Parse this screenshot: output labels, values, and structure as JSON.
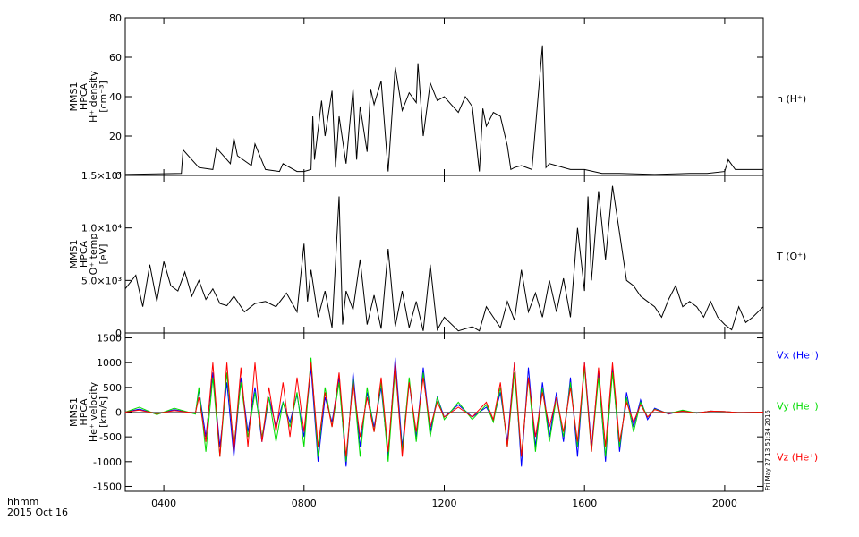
{
  "figure": {
    "time_axis": {
      "x_unit": "hours",
      "xlim": [
        2.9,
        21.1
      ],
      "ticks": [
        4,
        8,
        12,
        16,
        20
      ],
      "tick_labels": [
        "0400",
        "0800",
        "1200",
        "1600",
        "2000"
      ],
      "footer_format": "hhmm",
      "footer_date": "2015 Oct 16"
    },
    "timestamp": "Fri May 27 13:51:34 2016",
    "colors": {
      "black": "#000000",
      "blue": "#0000ff",
      "green": "#00dd00",
      "red": "#ff0000"
    }
  },
  "chart_data": [
    {
      "type": "line",
      "ylabel_lines": [
        "MMS1",
        "HPCA",
        "H⁺ density",
        "[cm⁻³]"
      ],
      "side_label": "n (H⁺)",
      "ylim": [
        0,
        80
      ],
      "yticks": [
        0,
        20,
        40,
        60,
        80
      ],
      "ytick_labels": [
        "0",
        "20",
        "40",
        "60",
        "80"
      ],
      "series": [
        {
          "color": "#000000",
          "x": [
            2.9,
            4.5,
            4.55,
            4.8,
            5.0,
            5.4,
            5.5,
            5.9,
            6.0,
            6.1,
            6.5,
            6.6,
            6.9,
            7.3,
            7.4,
            7.8,
            8.0,
            8.2,
            8.25,
            8.3,
            8.5,
            8.6,
            8.8,
            8.9,
            9.0,
            9.2,
            9.4,
            9.5,
            9.6,
            9.8,
            9.9,
            10.0,
            10.2,
            10.4,
            10.6,
            10.8,
            11.0,
            11.2,
            11.25,
            11.4,
            11.6,
            11.8,
            12.0,
            12.2,
            12.4,
            12.6,
            12.8,
            13.0,
            13.1,
            13.2,
            13.4,
            13.6,
            13.8,
            13.9,
            14.0,
            14.2,
            14.5,
            14.8,
            14.9,
            15.0,
            15.2,
            15.6,
            16.0,
            16.5,
            17.0,
            18.0,
            19.0,
            19.5,
            20.0,
            20.1,
            20.3,
            21.1
          ],
          "y": [
            0.5,
            1,
            13,
            8,
            4,
            3,
            14,
            6,
            19,
            10,
            5,
            16,
            3,
            2,
            6,
            2,
            2,
            3,
            30,
            8,
            38,
            20,
            43,
            4,
            30,
            6,
            44,
            8,
            35,
            12,
            44,
            36,
            48,
            2,
            55,
            33,
            42,
            37,
            57,
            20,
            47,
            38,
            40,
            36,
            32,
            40,
            35,
            2,
            34,
            25,
            32,
            30,
            15,
            3,
            4,
            5,
            3,
            66,
            4,
            6,
            5,
            3,
            3,
            1,
            1,
            0.5,
            1,
            1,
            2,
            8,
            3,
            3
          ]
        }
      ]
    },
    {
      "type": "line",
      "ylabel_lines": [
        "MMS1",
        "HPCA",
        "O⁺ temp",
        "[eV]"
      ],
      "side_label": "T (O⁺)",
      "ylim": [
        0,
        15000
      ],
      "yticks": [
        0,
        5000,
        10000,
        15000
      ],
      "ytick_labels": [
        "0",
        "5.0×10³",
        "1.0×10⁴",
        "1.5×10⁴"
      ],
      "series": [
        {
          "color": "#000000",
          "x": [
            2.9,
            3.2,
            3.4,
            3.6,
            3.8,
            4.0,
            4.2,
            4.4,
            4.6,
            4.8,
            5.0,
            5.2,
            5.4,
            5.6,
            5.8,
            6.0,
            6.3,
            6.6,
            6.9,
            7.2,
            7.5,
            7.8,
            8.0,
            8.1,
            8.2,
            8.4,
            8.6,
            8.8,
            9.0,
            9.1,
            9.2,
            9.4,
            9.6,
            9.8,
            10.0,
            10.2,
            10.4,
            10.6,
            10.8,
            11.0,
            11.2,
            11.4,
            11.6,
            11.8,
            12.0,
            12.4,
            12.8,
            13.0,
            13.2,
            13.4,
            13.6,
            13.8,
            14.0,
            14.2,
            14.4,
            14.6,
            14.8,
            15.0,
            15.2,
            15.4,
            15.6,
            15.8,
            16.0,
            16.1,
            16.2,
            16.4,
            16.6,
            16.8,
            17.0,
            17.2,
            17.4,
            17.6,
            17.8,
            18.0,
            18.2,
            18.4,
            18.6,
            18.8,
            19.0,
            19.2,
            19.4,
            19.6,
            19.8,
            20.0,
            20.2,
            20.4,
            20.6,
            20.8,
            21.1
          ],
          "y": [
            4200,
            5500,
            2500,
            6500,
            3000,
            6800,
            4500,
            4000,
            5800,
            3500,
            5000,
            3200,
            4200,
            2800,
            2600,
            3500,
            2000,
            2800,
            3000,
            2500,
            3800,
            2000,
            8500,
            3000,
            6000,
            1500,
            4000,
            500,
            13000,
            800,
            4000,
            2200,
            7000,
            800,
            3600,
            400,
            8000,
            600,
            4000,
            500,
            3000,
            200,
            6500,
            300,
            1500,
            200,
            600,
            200,
            2500,
            1500,
            500,
            3000,
            1200,
            6000,
            2000,
            3800,
            1500,
            5000,
            2000,
            5200,
            1500,
            10000,
            4000,
            13000,
            5000,
            13500,
            7000,
            14000,
            9500,
            5000,
            4500,
            3500,
            3000,
            2500,
            1500,
            3200,
            4500,
            2500,
            3000,
            2500,
            1500,
            3000,
            1500,
            800,
            300,
            2500,
            1000,
            1500,
            2500
          ]
        }
      ]
    },
    {
      "type": "line",
      "ylabel_lines": [
        "MMS1",
        "HPCA",
        "He⁺ velocity",
        "[km/s]"
      ],
      "ylim": [
        -1600,
        1600
      ],
      "yticks": [
        -1500,
        -1000,
        -500,
        0,
        500,
        1000,
        1500
      ],
      "ytick_labels": [
        "-1500",
        "-1000",
        "-500",
        "0",
        "500",
        "1000",
        "1500"
      ],
      "series": [
        {
          "name": "Vx (He⁺)",
          "color": "#0000ff",
          "x": [
            2.9,
            3.3,
            3.8,
            4.3,
            4.9,
            5.0,
            5.2,
            5.4,
            5.6,
            5.8,
            6.0,
            6.2,
            6.4,
            6.6,
            6.8,
            7.0,
            7.2,
            7.4,
            7.6,
            7.8,
            8.0,
            8.2,
            8.4,
            8.6,
            8.8,
            9.0,
            9.2,
            9.4,
            9.6,
            9.8,
            10.0,
            10.2,
            10.4,
            10.6,
            10.8,
            11.0,
            11.2,
            11.4,
            11.6,
            11.8,
            12.0,
            12.4,
            12.8,
            13.2,
            13.4,
            13.6,
            13.8,
            14.0,
            14.2,
            14.4,
            14.6,
            14.8,
            15.0,
            15.2,
            15.4,
            15.6,
            15.8,
            16.0,
            16.2,
            16.4,
            16.6,
            16.8,
            17.0,
            17.2,
            17.4,
            17.6,
            17.8,
            18.0,
            18.4,
            18.8,
            19.2,
            19.6,
            20.0,
            20.4,
            21.1
          ],
          "y": [
            0,
            60,
            -40,
            50,
            -30,
            450,
            -500,
            800,
            -700,
            600,
            -900,
            700,
            -400,
            500,
            -600,
            300,
            -300,
            200,
            -200,
            350,
            -500,
            900,
            -1000,
            300,
            -200,
            700,
            -1100,
            800,
            -700,
            400,
            -300,
            500,
            -900,
            1100,
            -700,
            600,
            -500,
            900,
            -400,
            300,
            -100,
            150,
            -100,
            100,
            -150,
            400,
            -600,
            1000,
            -1100,
            900,
            -700,
            600,
            -500,
            400,
            -600,
            700,
            -900,
            1000,
            -700,
            800,
            -1000,
            900,
            -800,
            400,
            -300,
            250,
            -150,
            80,
            -40,
            30,
            -20,
            20,
            10,
            -10,
            0
          ]
        },
        {
          "name": "Vy (He⁺)",
          "color": "#00dd00",
          "x": [
            2.9,
            3.3,
            3.8,
            4.3,
            4.9,
            5.0,
            5.2,
            5.4,
            5.6,
            5.8,
            6.0,
            6.2,
            6.4,
            6.6,
            6.8,
            7.0,
            7.2,
            7.4,
            7.6,
            7.8,
            8.0,
            8.2,
            8.4,
            8.6,
            8.8,
            9.0,
            9.2,
            9.4,
            9.6,
            9.8,
            10.0,
            10.2,
            10.4,
            10.6,
            10.8,
            11.0,
            11.2,
            11.4,
            11.6,
            11.8,
            12.0,
            12.4,
            12.8,
            13.2,
            13.4,
            13.6,
            13.8,
            14.0,
            14.2,
            14.4,
            14.6,
            14.8,
            15.0,
            15.2,
            15.4,
            15.6,
            15.8,
            16.0,
            16.2,
            16.4,
            16.6,
            16.8,
            17.0,
            17.2,
            17.4,
            17.6,
            17.8,
            18.0,
            18.4,
            18.8,
            19.2,
            19.6,
            20.0,
            20.4,
            21.1
          ],
          "y": [
            0,
            100,
            -50,
            80,
            -40,
            500,
            -800,
            700,
            -900,
            800,
            -700,
            600,
            -500,
            400,
            -500,
            300,
            -600,
            200,
            -300,
            400,
            -700,
            1100,
            -900,
            500,
            -300,
            600,
            -1000,
            700,
            -900,
            500,
            -400,
            600,
            -1000,
            900,
            -800,
            700,
            -600,
            800,
            -500,
            300,
            -150,
            200,
            -150,
            150,
            -200,
            500,
            -700,
            800,
            -900,
            700,
            -800,
            500,
            -600,
            300,
            -500,
            600,
            -700,
            900,
            -800,
            700,
            -900,
            800,
            -700,
            300,
            -400,
            200,
            -100,
            60,
            -30,
            40,
            -20,
            20,
            10,
            -10,
            0
          ]
        },
        {
          "name": "Vz (He⁺)",
          "color": "#ff0000",
          "x": [
            2.9,
            3.3,
            3.8,
            4.3,
            4.9,
            5.0,
            5.2,
            5.4,
            5.6,
            5.8,
            6.0,
            6.2,
            6.4,
            6.6,
            6.8,
            7.0,
            7.2,
            7.4,
            7.6,
            7.8,
            8.0,
            8.2,
            8.4,
            8.6,
            8.8,
            9.0,
            9.2,
            9.4,
            9.6,
            9.8,
            10.0,
            10.2,
            10.4,
            10.6,
            10.8,
            11.0,
            11.2,
            11.4,
            11.6,
            11.8,
            12.0,
            12.4,
            12.8,
            13.2,
            13.4,
            13.6,
            13.8,
            14.0,
            14.2,
            14.4,
            14.6,
            14.8,
            15.0,
            15.2,
            15.4,
            15.6,
            15.8,
            16.0,
            16.2,
            16.4,
            16.6,
            16.8,
            17.0,
            17.2,
            17.4,
            17.6,
            17.8,
            18.0,
            18.4,
            18.8,
            19.2,
            19.6,
            20.0,
            20.4,
            21.1
          ],
          "y": [
            0,
            40,
            -30,
            30,
            -20,
            300,
            -600,
            1000,
            -900,
            1000,
            -800,
            900,
            -700,
            1000,
            -600,
            500,
            -400,
            600,
            -500,
            700,
            -400,
            1000,
            -700,
            400,
            -300,
            800,
            -900,
            600,
            -500,
            300,
            -400,
            700,
            -800,
            1000,
            -900,
            600,
            -400,
            700,
            -300,
            200,
            -100,
            100,
            -100,
            200,
            -150,
            600,
            -700,
            1000,
            -900,
            700,
            -500,
            400,
            -300,
            300,
            -400,
            500,
            -600,
            1000,
            -800,
            900,
            -700,
            1000,
            -600,
            200,
            -200,
            150,
            -100,
            50,
            -30,
            20,
            -20,
            20,
            10,
            -10,
            0
          ]
        }
      ]
    }
  ]
}
